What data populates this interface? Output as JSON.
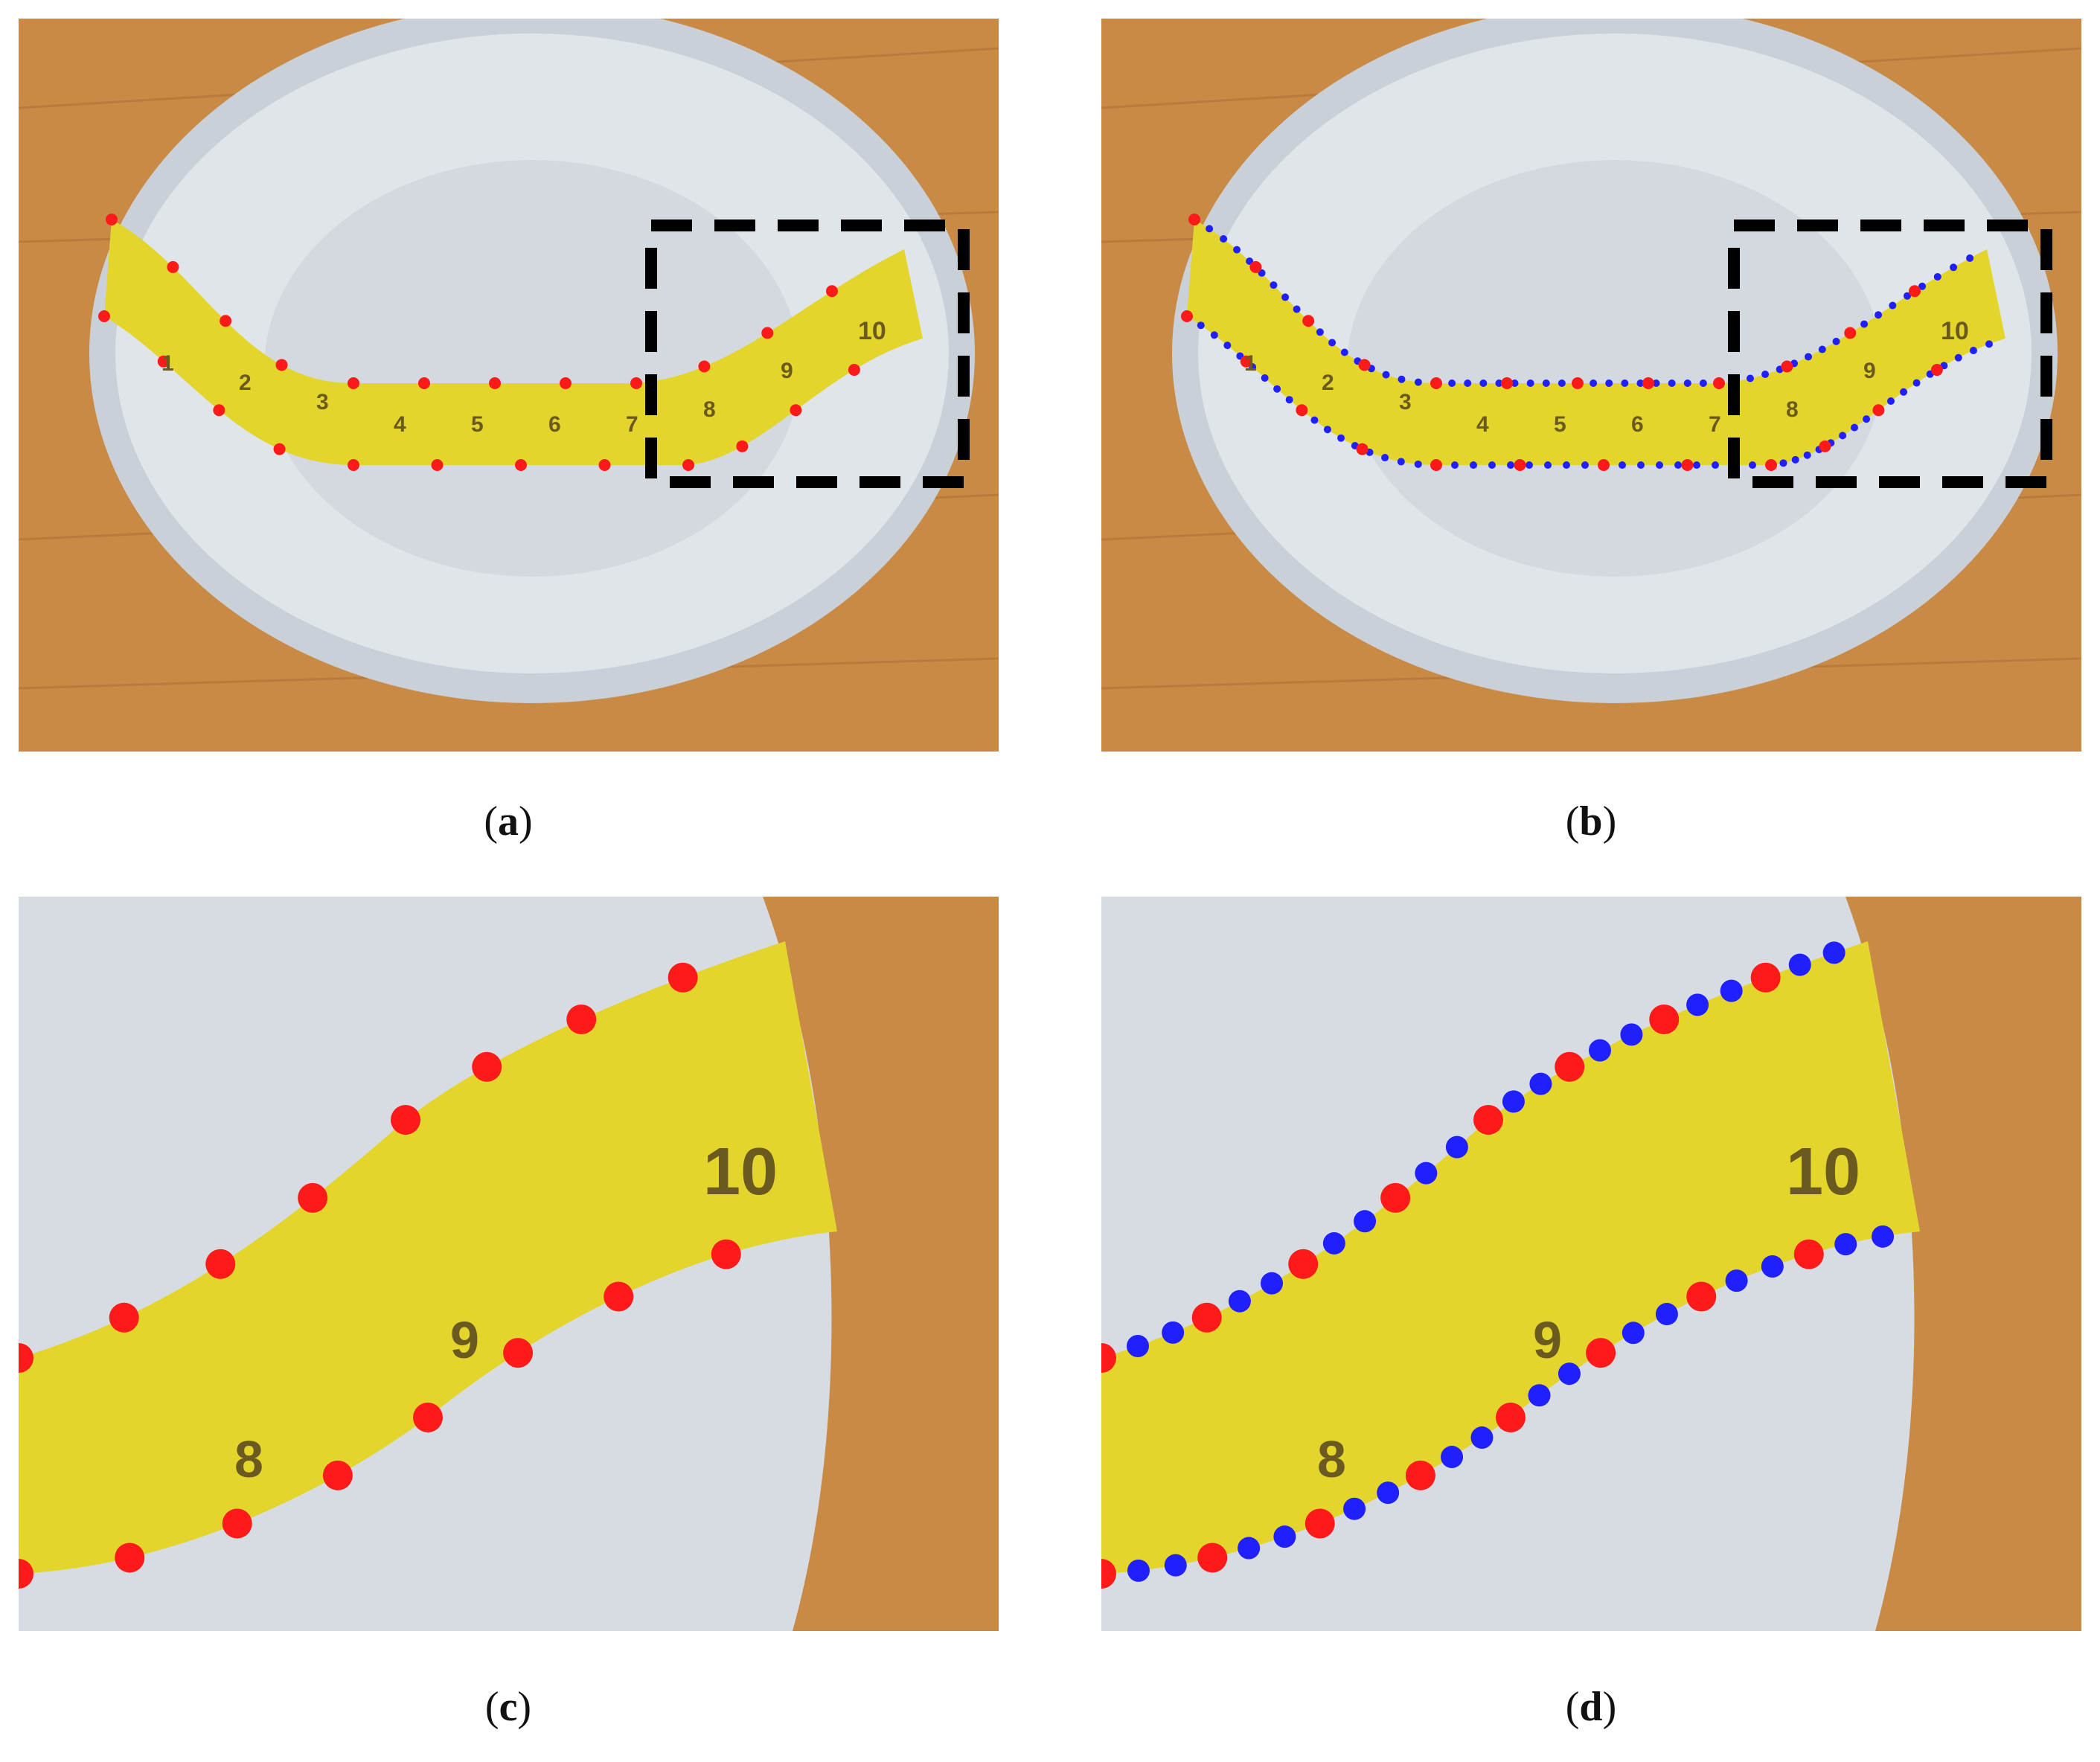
{
  "figure": {
    "panels": [
      {
        "id": "a",
        "open": "(",
        "letter": "a",
        "close": ")",
        "content": "whole bowl with tape, sparse red points"
      },
      {
        "id": "b",
        "open": "(",
        "letter": "b",
        "close": ")",
        "content": "whole bowl with tape, red and blue points"
      },
      {
        "id": "c",
        "open": "(",
        "letter": "c",
        "close": ")",
        "content": "zoomed box region, red points"
      },
      {
        "id": "d",
        "open": "(",
        "letter": "d",
        "close": ")",
        "content": "zoomed box region, red and blue points"
      }
    ],
    "tape_numbers_full": [
      "1",
      "2",
      "3",
      "4",
      "5",
      "6",
      "7",
      "8",
      "9",
      "10"
    ],
    "tape_numbers_zoom": [
      "8",
      "9",
      "10"
    ]
  },
  "colors": {
    "wood": "#c98a46",
    "bowl": "#d9dfe5",
    "tape": "#e3d52b",
    "red_point": "#ff1a1a",
    "blue_point": "#1f1fff",
    "box_stroke": "#000000"
  }
}
